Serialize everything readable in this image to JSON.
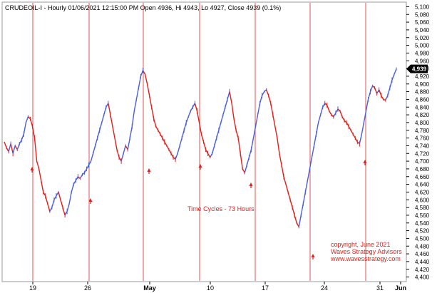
{
  "chart_data": {
    "type": "line",
    "title": "CRUDEOIL-I - Hourly 01/06/2021 12:15:00 PM Open 4936, Hi 4943, Lo 4927, Close 4939 (0.1%)",
    "y_ticks": [
      "5,100",
      "5,080",
      "5,060",
      "5,040",
      "5,020",
      "5,000",
      "4,980",
      "4,960",
      "4,940",
      "4,920",
      "4,900",
      "4,880",
      "4,860",
      "4,840",
      "4,820",
      "4,800",
      "4,780",
      "4,760",
      "4,740",
      "4,720",
      "4,700",
      "4,680",
      "4,660",
      "4,640",
      "4,620",
      "4,600",
      "4,580",
      "4,560",
      "4,540",
      "4,520",
      "4,500",
      "4,480",
      "4,460",
      "4,440",
      "4,420",
      "4,400"
    ],
    "ylim": [
      4390,
      5110
    ],
    "x_ticks": [
      {
        "label": "19",
        "bold": false
      },
      {
        "label": "26",
        "bold": false
      },
      {
        "label": "May",
        "bold": true
      },
      {
        "label": "10",
        "bold": false
      },
      {
        "label": "17",
        "bold": false
      },
      {
        "label": "24",
        "bold": false
      },
      {
        "label": "31",
        "bold": false
      },
      {
        "label": "Jun",
        "bold": true
      }
    ],
    "last_price_label": "4,939",
    "last_price_value": 4939,
    "series": [
      {
        "color_up": "#4a5fe0",
        "color_down": "#e0201c",
        "values": [
          4750,
          4735,
          4725,
          4745,
          4720,
          4740,
          4730,
          4745,
          4755,
          4770,
          4800,
          4815,
          4810,
          4790,
          4760,
          4700,
          4680,
          4650,
          4620,
          4610,
          4590,
          4570,
          4580,
          4600,
          4610,
          4620,
          4600,
          4580,
          4560,
          4570,
          4590,
          4620,
          4640,
          4650,
          4660,
          4655,
          4665,
          4670,
          4680,
          4690,
          4700,
          4720,
          4740,
          4760,
          4780,
          4800,
          4820,
          4840,
          4850,
          4820,
          4790,
          4760,
          4730,
          4710,
          4700,
          4720,
          4740,
          4730,
          4760,
          4790,
          4830,
          4860,
          4890,
          4920,
          4935,
          4925,
          4900,
          4870,
          4840,
          4810,
          4790,
          4780,
          4770,
          4760,
          4750,
          4740,
          4730,
          4720,
          4710,
          4705,
          4720,
          4740,
          4760,
          4780,
          4800,
          4815,
          4830,
          4840,
          4850,
          4830,
          4800,
          4770,
          4750,
          4730,
          4720,
          4710,
          4720,
          4740,
          4760,
          4780,
          4800,
          4820,
          4840,
          4860,
          4880,
          4850,
          4810,
          4780,
          4760,
          4720,
          4680,
          4670,
          4690,
          4710,
          4730,
          4760,
          4790,
          4820,
          4850,
          4870,
          4880,
          4885,
          4870,
          4850,
          4820,
          4790,
          4760,
          4720,
          4690,
          4660,
          4640,
          4620,
          4600,
          4580,
          4560,
          4540,
          4530,
          4560,
          4590,
          4620,
          4650,
          4680,
          4710,
          4740,
          4770,
          4800,
          4820,
          4840,
          4850,
          4845,
          4830,
          4820,
          4815,
          4825,
          4835,
          4830,
          4815,
          4805,
          4800,
          4790,
          4780,
          4770,
          4760,
          4750,
          4745,
          4770,
          4800,
          4830,
          4860,
          4880,
          4895,
          4890,
          4875,
          4885,
          4870,
          4860,
          4858,
          4870,
          4890,
          4910,
          4925,
          4939
        ]
      }
    ],
    "cycle_lines_color": "#e05050",
    "annotations": {
      "cycle_label": "Time Cycles - 73 Hours",
      "copyright": "copyright, June 2021",
      "advisor": "Waves Strategy Advisors",
      "website": "www.wavesstrategy.com"
    },
    "grid": false
  }
}
